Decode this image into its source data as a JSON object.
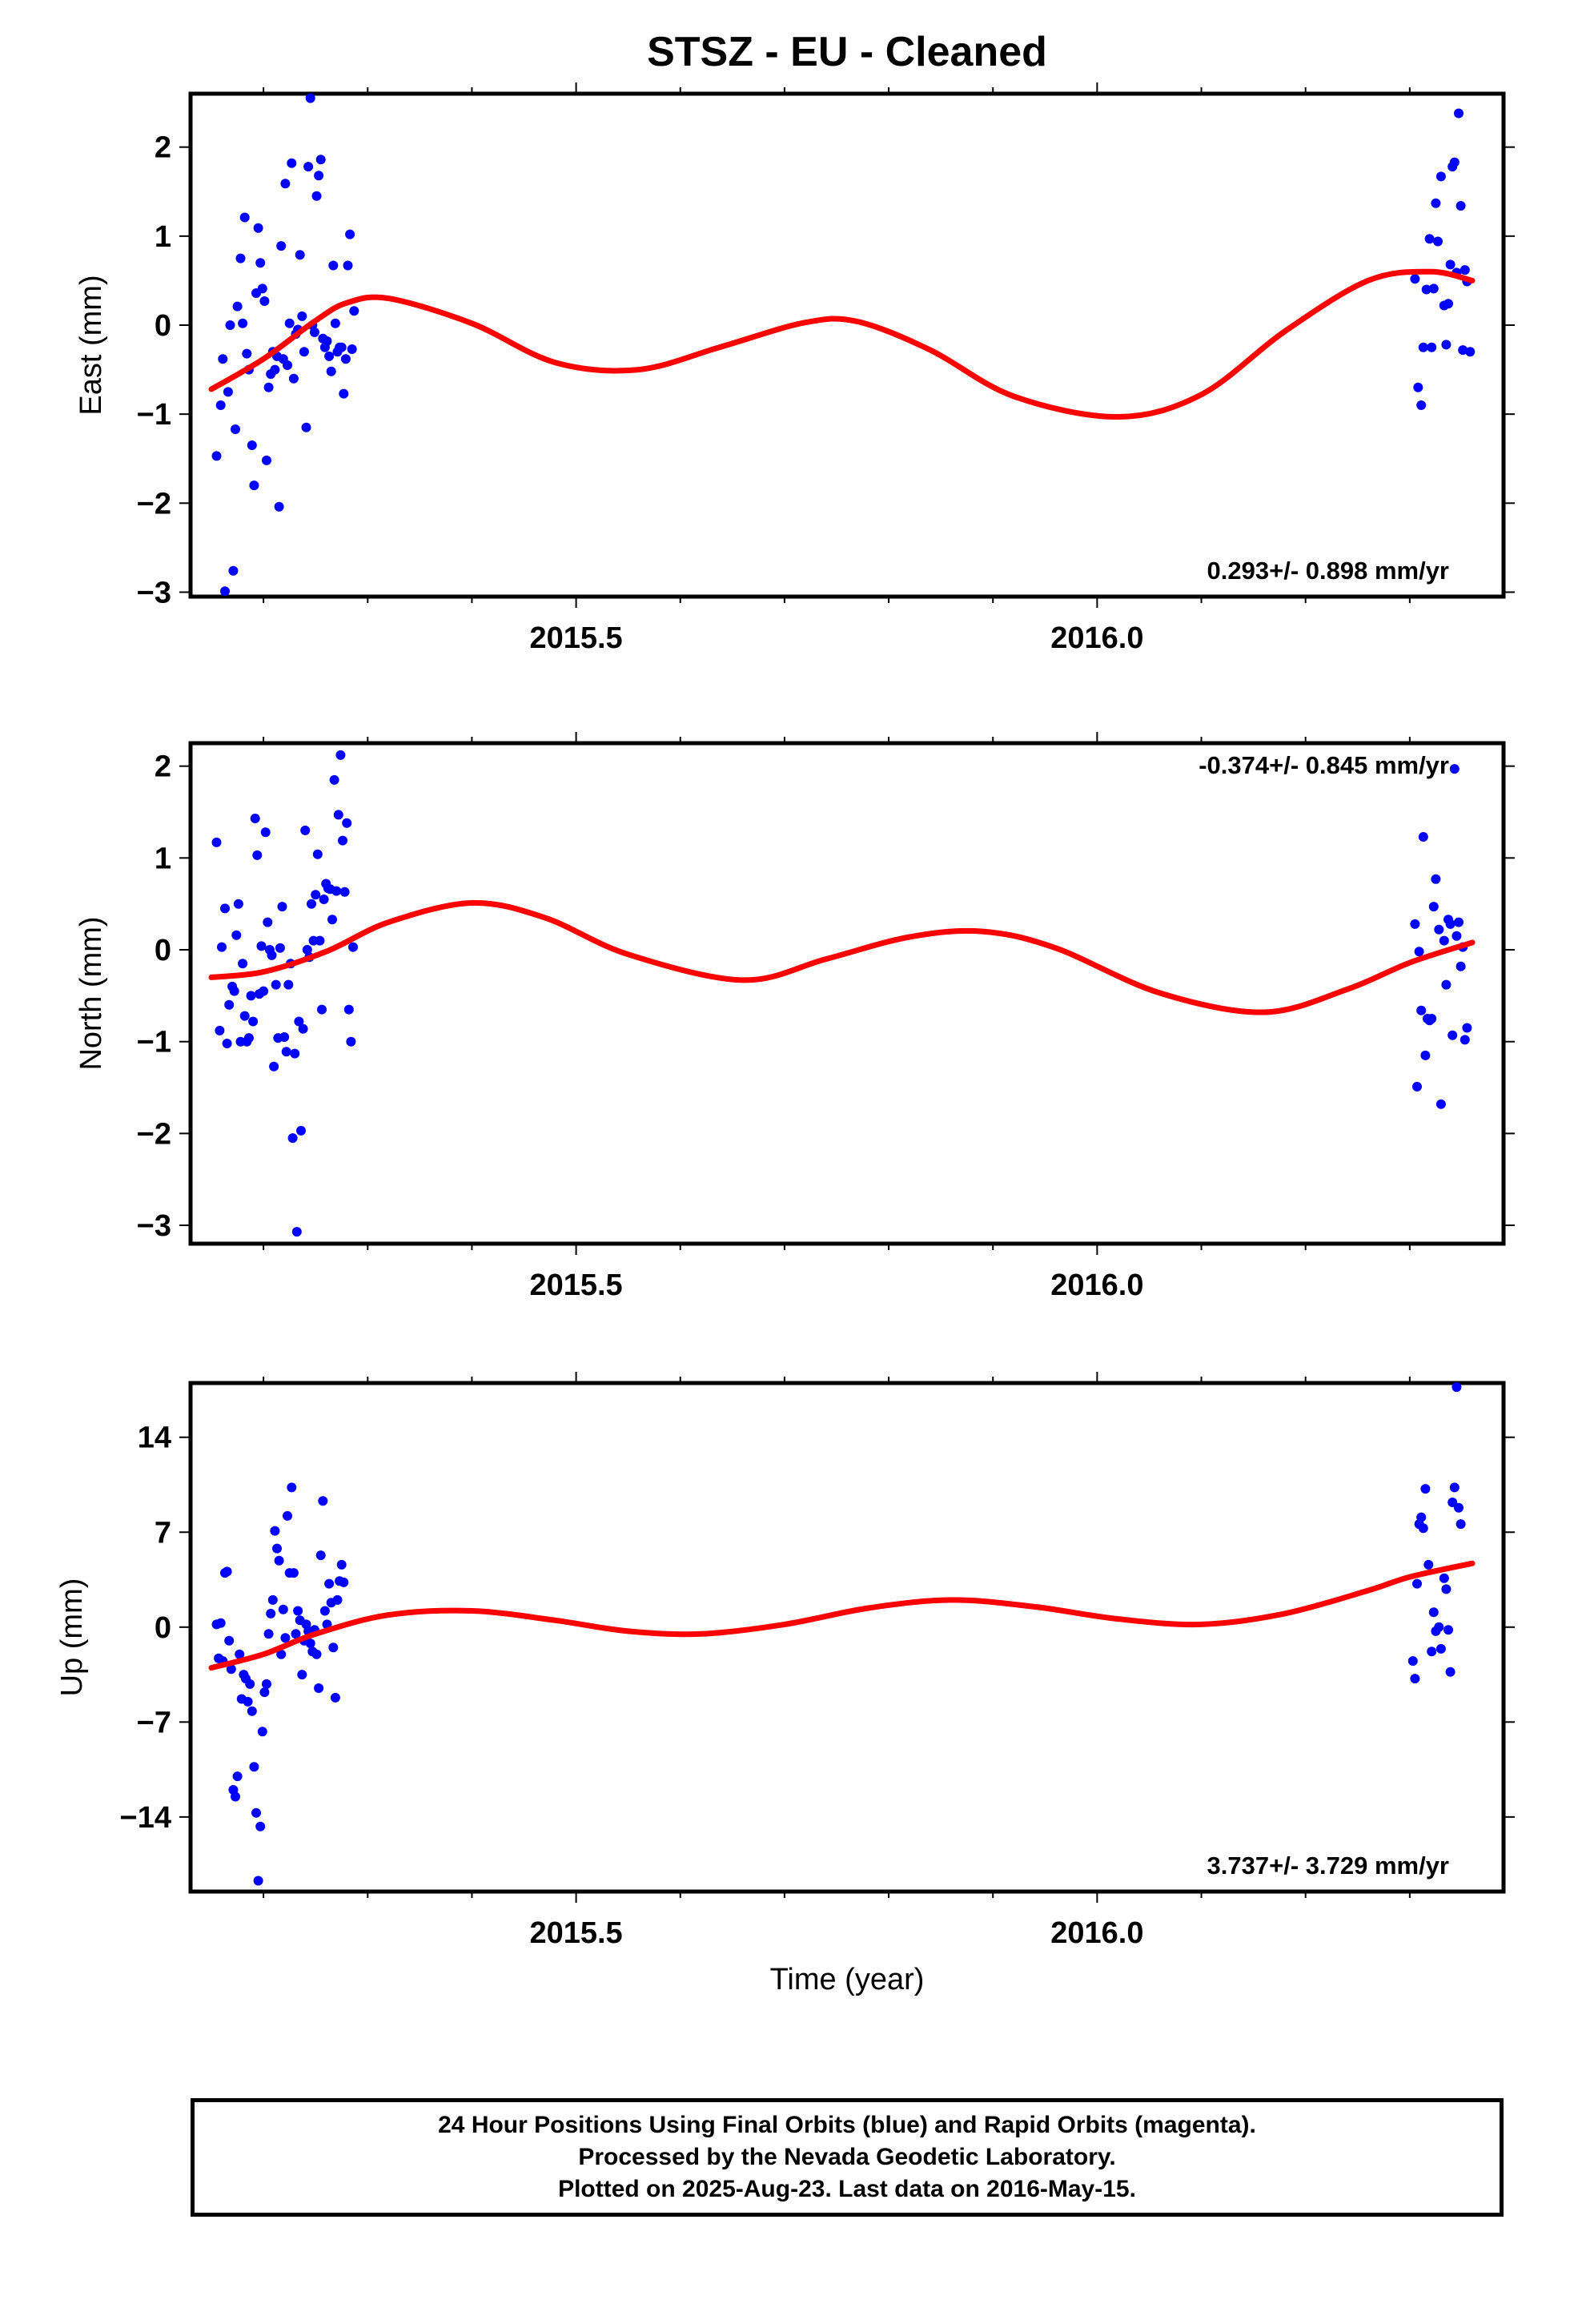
{
  "title": "STSZ  - EU - Cleaned",
  "x_axis": {
    "label": "Time (year)",
    "range": [
      2015.13,
      2016.39
    ],
    "tick_labels": [
      "2015.5",
      "2016.0"
    ],
    "tick_values": [
      2015.5,
      2016.0
    ],
    "minor_tick_step": 0.1
  },
  "colors": {
    "data": "#0000ff",
    "model": "#ff0000",
    "axis": "#000000"
  },
  "footer": {
    "lines": [
      "24 Hour Positions Using Final Orbits (blue) and Rapid Orbits (magenta).",
      "Processed by the Nevada Geodetic Laboratory.",
      "Plotted on 2025-Aug-23. Last data on 2016-May-15."
    ]
  },
  "chart_data": [
    {
      "type": "scatter",
      "panel": "east",
      "ylabel": "East (mm)",
      "ylim": [
        -3.05,
        2.6
      ],
      "yticks": [
        2,
        1,
        0,
        -1,
        -2,
        -3
      ],
      "ytick_labels": [
        "2",
        "1",
        "0",
        "−1",
        "−2",
        "−3"
      ],
      "rate_label": "0.293+/- 0.898 mm/yr",
      "rate_position": "bottom-right",
      "points": [
        [
          2015.155,
          -1.47
        ],
        [
          2015.159,
          -0.9
        ],
        [
          2015.161,
          -0.38
        ],
        [
          2015.163,
          -2.99
        ],
        [
          2015.166,
          -0.75
        ],
        [
          2015.168,
          0.0
        ],
        [
          2015.171,
          -2.76
        ],
        [
          2015.173,
          -1.17
        ],
        [
          2015.175,
          0.21
        ],
        [
          2015.178,
          0.75
        ],
        [
          2015.18,
          0.02
        ],
        [
          2015.182,
          1.21
        ],
        [
          2015.184,
          -0.32
        ],
        [
          2015.186,
          -0.5
        ],
        [
          2015.189,
          -1.35
        ],
        [
          2015.191,
          -1.8
        ],
        [
          2015.193,
          0.36
        ],
        [
          2015.195,
          1.09
        ],
        [
          2015.197,
          0.7
        ],
        [
          2015.199,
          0.41
        ],
        [
          2015.201,
          0.27
        ],
        [
          2015.203,
          -1.52
        ],
        [
          2015.205,
          -0.7
        ],
        [
          2015.207,
          -0.55
        ],
        [
          2015.209,
          -0.3
        ],
        [
          2015.211,
          -0.5
        ],
        [
          2015.213,
          -0.35
        ],
        [
          2015.215,
          -2.04
        ],
        [
          2015.217,
          0.89
        ],
        [
          2015.219,
          -0.38
        ],
        [
          2015.221,
          1.59
        ],
        [
          2015.223,
          -0.45
        ],
        [
          2015.225,
          0.02
        ],
        [
          2015.227,
          1.82
        ],
        [
          2015.229,
          -0.6
        ],
        [
          2015.231,
          -0.1
        ],
        [
          2015.233,
          -0.05
        ],
        [
          2015.235,
          0.79
        ],
        [
          2015.237,
          0.1
        ],
        [
          2015.239,
          -0.3
        ],
        [
          2015.241,
          -1.15
        ],
        [
          2015.243,
          1.78
        ],
        [
          2015.245,
          2.55
        ],
        [
          2015.247,
          0.0
        ],
        [
          2015.249,
          -0.08
        ],
        [
          2015.251,
          1.45
        ],
        [
          2015.253,
          1.68
        ],
        [
          2015.255,
          1.86
        ],
        [
          2015.257,
          -0.15
        ],
        [
          2015.259,
          -0.25
        ],
        [
          2015.261,
          -0.18
        ],
        [
          2015.263,
          -0.35
        ],
        [
          2015.265,
          -0.52
        ],
        [
          2015.267,
          0.67
        ],
        [
          2015.269,
          0.02
        ],
        [
          2015.271,
          -0.3
        ],
        [
          2015.273,
          -0.25
        ],
        [
          2015.275,
          -0.25
        ],
        [
          2015.277,
          -0.77
        ],
        [
          2015.279,
          -0.38
        ],
        [
          2015.281,
          0.67
        ],
        [
          2015.283,
          1.02
        ],
        [
          2015.285,
          -0.27
        ],
        [
          2015.287,
          0.16
        ],
        [
          2016.305,
          0.52
        ],
        [
          2016.308,
          -0.7
        ],
        [
          2016.311,
          -0.9
        ],
        [
          2016.313,
          -0.25
        ],
        [
          2016.316,
          0.4
        ],
        [
          2016.319,
          0.97
        ],
        [
          2016.321,
          -0.25
        ],
        [
          2016.323,
          0.41
        ],
        [
          2016.325,
          1.37
        ],
        [
          2016.327,
          0.94
        ],
        [
          2016.33,
          1.67
        ],
        [
          2016.333,
          0.22
        ],
        [
          2016.335,
          -0.22
        ],
        [
          2016.337,
          0.24
        ],
        [
          2016.339,
          0.68
        ],
        [
          2016.341,
          1.78
        ],
        [
          2016.343,
          1.83
        ],
        [
          2016.345,
          0.59
        ],
        [
          2016.347,
          2.38
        ],
        [
          2016.349,
          1.34
        ],
        [
          2016.351,
          -0.28
        ],
        [
          2016.353,
          0.62
        ],
        [
          2016.355,
          0.49
        ],
        [
          2016.358,
          -0.3
        ]
      ],
      "model": [
        [
          2015.15,
          -0.72
        ],
        [
          2015.2,
          -0.38
        ],
        [
          2015.25,
          0.05
        ],
        [
          2015.28,
          0.25
        ],
        [
          2015.32,
          0.3
        ],
        [
          2015.4,
          0.02
        ],
        [
          2015.48,
          -0.42
        ],
        [
          2015.56,
          -0.5
        ],
        [
          2015.64,
          -0.24
        ],
        [
          2015.72,
          0.03
        ],
        [
          2015.77,
          0.04
        ],
        [
          2015.84,
          -0.28
        ],
        [
          2015.92,
          -0.8
        ],
        [
          2016.02,
          -1.03
        ],
        [
          2016.1,
          -0.78
        ],
        [
          2016.18,
          -0.07
        ],
        [
          2016.26,
          0.5
        ],
        [
          2016.32,
          0.6
        ],
        [
          2016.36,
          0.5
        ]
      ]
    },
    {
      "type": "scatter",
      "panel": "north",
      "ylabel": "North (mm)",
      "ylim": [
        -3.2,
        2.25
      ],
      "yticks": [
        2,
        1,
        0,
        -1,
        -2,
        -3
      ],
      "ytick_labels": [
        "2",
        "1",
        "0",
        "−1",
        "−2",
        "−3"
      ],
      "rate_label": "-0.374+/- 0.845 mm/yr",
      "rate_position": "top-right",
      "points": [
        [
          2015.155,
          1.17
        ],
        [
          2015.158,
          -0.88
        ],
        [
          2015.16,
          0.03
        ],
        [
          2015.163,
          0.45
        ],
        [
          2015.165,
          -1.02
        ],
        [
          2015.167,
          -0.6
        ],
        [
          2015.17,
          -0.4
        ],
        [
          2015.172,
          -0.45
        ],
        [
          2015.174,
          0.16
        ],
        [
          2015.176,
          0.5
        ],
        [
          2015.178,
          -1.0
        ],
        [
          2015.18,
          -0.15
        ],
        [
          2015.182,
          -0.72
        ],
        [
          2015.184,
          -1.0
        ],
        [
          2015.186,
          -0.96
        ],
        [
          2015.188,
          -0.5
        ],
        [
          2015.19,
          -0.78
        ],
        [
          2015.192,
          1.43
        ],
        [
          2015.194,
          1.03
        ],
        [
          2015.196,
          -0.48
        ],
        [
          2015.198,
          0.04
        ],
        [
          2015.2,
          -0.45
        ],
        [
          2015.202,
          1.28
        ],
        [
          2015.204,
          0.3
        ],
        [
          2015.206,
          0.0
        ],
        [
          2015.208,
          -0.06
        ],
        [
          2015.21,
          -1.27
        ],
        [
          2015.212,
          -0.38
        ],
        [
          2015.214,
          -0.96
        ],
        [
          2015.216,
          0.02
        ],
        [
          2015.218,
          0.47
        ],
        [
          2015.22,
          -0.95
        ],
        [
          2015.222,
          -1.11
        ],
        [
          2015.224,
          -0.38
        ],
        [
          2015.226,
          -0.15
        ],
        [
          2015.228,
          -2.05
        ],
        [
          2015.23,
          -1.13
        ],
        [
          2015.232,
          -3.07
        ],
        [
          2015.234,
          -0.78
        ],
        [
          2015.236,
          -1.97
        ],
        [
          2015.238,
          -0.86
        ],
        [
          2015.24,
          1.3
        ],
        [
          2015.242,
          0.0
        ],
        [
          2015.244,
          -0.08
        ],
        [
          2015.246,
          0.5
        ],
        [
          2015.248,
          0.1
        ],
        [
          2015.25,
          0.6
        ],
        [
          2015.252,
          1.04
        ],
        [
          2015.254,
          0.1
        ],
        [
          2015.256,
          -0.65
        ],
        [
          2015.258,
          0.55
        ],
        [
          2015.26,
          0.72
        ],
        [
          2015.262,
          0.67
        ],
        [
          2015.264,
          0.66
        ],
        [
          2015.266,
          0.33
        ],
        [
          2015.268,
          1.85
        ],
        [
          2015.27,
          0.64
        ],
        [
          2015.272,
          1.47
        ],
        [
          2015.274,
          2.12
        ],
        [
          2015.276,
          1.19
        ],
        [
          2015.278,
          0.63
        ],
        [
          2015.28,
          1.38
        ],
        [
          2015.282,
          -0.65
        ],
        [
          2015.284,
          -1.0
        ],
        [
          2015.286,
          0.03
        ],
        [
          2016.305,
          0.28
        ],
        [
          2016.307,
          -1.49
        ],
        [
          2016.309,
          -0.02
        ],
        [
          2016.311,
          -0.66
        ],
        [
          2016.313,
          1.23
        ],
        [
          2016.315,
          -1.15
        ],
        [
          2016.317,
          -0.75
        ],
        [
          2016.319,
          -0.77
        ],
        [
          2016.321,
          -0.75
        ],
        [
          2016.323,
          0.47
        ],
        [
          2016.325,
          0.77
        ],
        [
          2016.328,
          0.22
        ],
        [
          2016.33,
          -1.68
        ],
        [
          2016.333,
          0.1
        ],
        [
          2016.335,
          -0.38
        ],
        [
          2016.337,
          0.33
        ],
        [
          2016.339,
          0.28
        ],
        [
          2016.341,
          -0.93
        ],
        [
          2016.343,
          1.97
        ],
        [
          2016.345,
          0.15
        ],
        [
          2016.347,
          0.3
        ],
        [
          2016.349,
          -0.18
        ],
        [
          2016.351,
          0.03
        ],
        [
          2016.353,
          -0.98
        ],
        [
          2016.355,
          -0.85
        ]
      ],
      "model": [
        [
          2015.15,
          -0.3
        ],
        [
          2015.2,
          -0.24
        ],
        [
          2015.26,
          -0.02
        ],
        [
          2015.32,
          0.3
        ],
        [
          2015.4,
          0.51
        ],
        [
          2015.47,
          0.35
        ],
        [
          2015.55,
          -0.05
        ],
        [
          2015.66,
          -0.33
        ],
        [
          2015.74,
          -0.1
        ],
        [
          2015.82,
          0.14
        ],
        [
          2015.89,
          0.2
        ],
        [
          2015.96,
          0.02
        ],
        [
          2016.06,
          -0.47
        ],
        [
          2016.16,
          -0.68
        ],
        [
          2016.24,
          -0.43
        ],
        [
          2016.3,
          -0.14
        ],
        [
          2016.36,
          0.08
        ]
      ]
    },
    {
      "type": "scatter",
      "panel": "up",
      "ylabel": "Up (mm)",
      "ylim": [
        -19.5,
        18.0
      ],
      "yticks": [
        14,
        7,
        0,
        -7,
        -14
      ],
      "ytick_labels": [
        "14",
        "7",
        "0",
        "−7",
        "−14"
      ],
      "rate_label": "3.737+/- 3.729 mm/yr",
      "rate_position": "bottom-right",
      "points": [
        [
          2015.155,
          0.2
        ],
        [
          2015.157,
          -2.3
        ],
        [
          2015.159,
          0.3
        ],
        [
          2015.161,
          -2.5
        ],
        [
          2015.163,
          4.0
        ],
        [
          2015.165,
          4.1
        ],
        [
          2015.167,
          -1.0
        ],
        [
          2015.169,
          -3.1
        ],
        [
          2015.171,
          -12.0
        ],
        [
          2015.173,
          -12.5
        ],
        [
          2015.175,
          -11.0
        ],
        [
          2015.177,
          -2.0
        ],
        [
          2015.179,
          -5.3
        ],
        [
          2015.181,
          -3.5
        ],
        [
          2015.183,
          -3.8
        ],
        [
          2015.185,
          -5.5
        ],
        [
          2015.187,
          -4.2
        ],
        [
          2015.189,
          -6.2
        ],
        [
          2015.191,
          -10.3
        ],
        [
          2015.193,
          -13.7
        ],
        [
          2015.195,
          -18.7
        ],
        [
          2015.197,
          -14.7
        ],
        [
          2015.199,
          -7.7
        ],
        [
          2015.201,
          -4.8
        ],
        [
          2015.203,
          -4.2
        ],
        [
          2015.205,
          -0.5
        ],
        [
          2015.207,
          1.0
        ],
        [
          2015.209,
          2.0
        ],
        [
          2015.211,
          7.1
        ],
        [
          2015.213,
          5.8
        ],
        [
          2015.215,
          4.9
        ],
        [
          2015.217,
          -2.0
        ],
        [
          2015.219,
          1.3
        ],
        [
          2015.221,
          -0.8
        ],
        [
          2015.223,
          8.2
        ],
        [
          2015.225,
          4.0
        ],
        [
          2015.227,
          10.3
        ],
        [
          2015.229,
          4.0
        ],
        [
          2015.231,
          -0.5
        ],
        [
          2015.233,
          1.2
        ],
        [
          2015.235,
          0.5
        ],
        [
          2015.237,
          -3.5
        ],
        [
          2015.239,
          -1.0
        ],
        [
          2015.241,
          0.2
        ],
        [
          2015.243,
          -0.3
        ],
        [
          2015.245,
          -1.2
        ],
        [
          2015.247,
          -1.8
        ],
        [
          2015.249,
          -0.2
        ],
        [
          2015.251,
          -2.0
        ],
        [
          2015.253,
          -4.5
        ],
        [
          2015.255,
          5.3
        ],
        [
          2015.257,
          9.3
        ],
        [
          2015.259,
          1.2
        ],
        [
          2015.261,
          0.2
        ],
        [
          2015.263,
          3.2
        ],
        [
          2015.265,
          1.8
        ],
        [
          2015.267,
          -1.5
        ],
        [
          2015.269,
          -5.2
        ],
        [
          2015.271,
          2.0
        ],
        [
          2015.273,
          3.4
        ],
        [
          2015.275,
          4.6
        ],
        [
          2015.277,
          3.3
        ],
        [
          2016.303,
          -2.5
        ],
        [
          2016.305,
          -3.8
        ],
        [
          2016.307,
          3.2
        ],
        [
          2016.309,
          7.6
        ],
        [
          2016.311,
          8.1
        ],
        [
          2016.313,
          7.3
        ],
        [
          2016.315,
          10.2
        ],
        [
          2016.318,
          4.6
        ],
        [
          2016.321,
          -1.8
        ],
        [
          2016.323,
          1.1
        ],
        [
          2016.325,
          -0.3
        ],
        [
          2016.328,
          0.0
        ],
        [
          2016.33,
          -1.6
        ],
        [
          2016.333,
          3.6
        ],
        [
          2016.335,
          2.8
        ],
        [
          2016.337,
          -0.2
        ],
        [
          2016.339,
          -3.3
        ],
        [
          2016.341,
          9.2
        ],
        [
          2016.343,
          10.3
        ],
        [
          2016.345,
          17.7
        ],
        [
          2016.347,
          8.8
        ],
        [
          2016.349,
          7.6
        ]
      ],
      "model": [
        [
          2015.15,
          -3.0
        ],
        [
          2015.2,
          -2.0
        ],
        [
          2015.25,
          -0.5
        ],
        [
          2015.32,
          0.9
        ],
        [
          2015.4,
          1.2
        ],
        [
          2015.48,
          0.5
        ],
        [
          2015.55,
          -0.3
        ],
        [
          2015.62,
          -0.5
        ],
        [
          2015.7,
          0.2
        ],
        [
          2015.78,
          1.4
        ],
        [
          2015.86,
          2.0
        ],
        [
          2015.94,
          1.5
        ],
        [
          2016.02,
          0.6
        ],
        [
          2016.1,
          0.2
        ],
        [
          2016.18,
          1.0
        ],
        [
          2016.26,
          2.7
        ],
        [
          2016.3,
          3.7
        ],
        [
          2016.36,
          4.7
        ]
      ]
    }
  ]
}
